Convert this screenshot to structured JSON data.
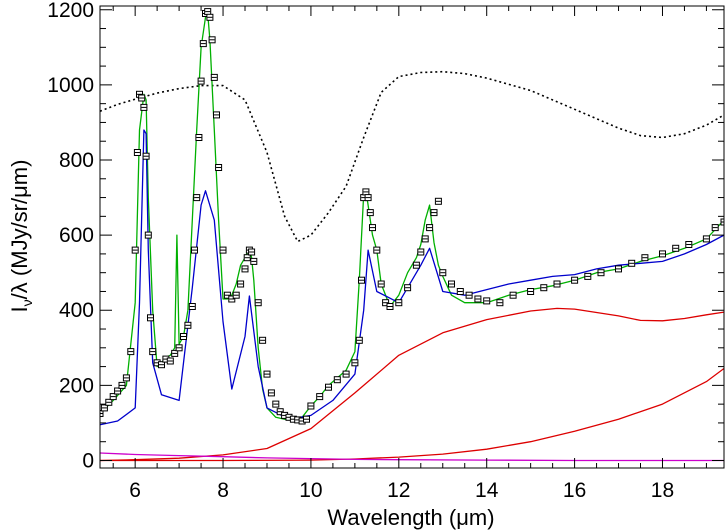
{
  "chart_data": {
    "type": "line",
    "title": "",
    "xlabel": "Wavelength (μm)",
    "ylabel": "I_ν/λ (MJy/sr/μm)",
    "ylabel_parts": {
      "main": "I",
      "sub": "ν",
      "rest": "/λ (MJy/sr/μm)"
    },
    "xlim": [
      5.2,
      19.4
    ],
    "ylim": [
      -20,
      1210
    ],
    "x_ticks": [
      6,
      8,
      10,
      12,
      14,
      16,
      18
    ],
    "x_tick_labels": [
      "6",
      "8",
      "10",
      "12",
      "14",
      "16",
      "18"
    ],
    "y_ticks": [
      0,
      200,
      400,
      600,
      800,
      1000,
      1200
    ],
    "y_tick_labels": [
      "0",
      "200",
      "400",
      "600",
      "800",
      "1000",
      "1200"
    ],
    "grid": false,
    "legend": "none",
    "colors": {
      "data": "#000000",
      "fit": "#00b000",
      "features": "#0000cc",
      "lines": "#cc00cc",
      "dust": "#dd0000",
      "continuum": "#555566",
      "extinction": "#000000"
    },
    "series": [
      {
        "style": "dotted",
        "color": "#000000",
        "x": [
          5.2,
          5.6,
          6.0,
          6.5,
          7.0,
          7.5,
          8.0,
          8.5,
          9.0,
          9.4,
          9.7,
          10.0,
          10.4,
          10.8,
          11.2,
          11.6,
          12.0,
          12.5,
          13.0,
          13.5,
          14.0,
          15.0,
          16.0,
          17.0,
          17.5,
          18.0,
          18.5,
          19.0,
          19.4
        ],
        "y": [
          930,
          948,
          962,
          978,
          990,
          998,
          998,
          960,
          820,
          650,
          583,
          600,
          660,
          730,
          860,
          980,
          1022,
          1033,
          1035,
          1030,
          1018,
          985,
          935,
          885,
          865,
          860,
          870,
          893,
          920
        ]
      },
      {
        "style": "solid",
        "color": "#dd0000",
        "x": [
          5.2,
          6,
          7,
          8,
          9,
          10,
          11,
          12,
          13,
          14,
          15,
          15.6,
          16,
          17,
          17.5,
          18,
          18.5,
          19,
          19.4
        ],
        "y": [
          0,
          2,
          6,
          15,
          32,
          85,
          180,
          280,
          340,
          375,
          398,
          405,
          403,
          385,
          373,
          372,
          378,
          388,
          395
        ]
      },
      {
        "style": "solid",
        "color": "#dd0000",
        "x": [
          5.2,
          8,
          10,
          11,
          12,
          13,
          14,
          15,
          16,
          17,
          18,
          19,
          19.4
        ],
        "y": [
          0,
          0,
          1,
          4,
          9,
          17,
          30,
          50,
          78,
          110,
          150,
          210,
          245
        ]
      },
      {
        "style": "solid",
        "color": "#cc00cc",
        "x": [
          5.2,
          6,
          7,
          8,
          9,
          10,
          11,
          12,
          14,
          16,
          19.4
        ],
        "y": [
          20,
          16,
          13,
          10,
          7,
          5,
          3,
          2,
          1,
          0,
          0
        ]
      },
      {
        "style": "solid",
        "color": "#00b000",
        "x": [
          5.2,
          5.5,
          5.8,
          6.0,
          6.1,
          6.2,
          6.25,
          6.3,
          6.4,
          6.5,
          6.6,
          6.7,
          6.8,
          6.9,
          6.95,
          7.0,
          7.05,
          7.1,
          7.2,
          7.3,
          7.4,
          7.5,
          7.6,
          7.65,
          7.7,
          7.8,
          7.9,
          8.0,
          8.1,
          8.2,
          8.3,
          8.4,
          8.5,
          8.6,
          8.65,
          8.7,
          8.8,
          8.9,
          9.0,
          9.2,
          9.4,
          9.6,
          9.8,
          10.0,
          10.2,
          10.4,
          10.6,
          10.8,
          11.0,
          11.1,
          11.2,
          11.25,
          11.3,
          11.4,
          11.5,
          11.6,
          11.8,
          12.0,
          12.2,
          12.4,
          12.5,
          12.6,
          12.7,
          12.8,
          12.9,
          13.0,
          13.2,
          13.5,
          14.0,
          14.5,
          15.0,
          15.5,
          16.0,
          16.5,
          17.0,
          17.5,
          18.0,
          18.5,
          19.0,
          19.4
        ],
        "y": [
          125,
          160,
          200,
          420,
          880,
          975,
          960,
          700,
          400,
          250,
          260,
          275,
          280,
          300,
          600,
          310,
          320,
          330,
          400,
          640,
          880,
          1100,
          1180,
          1190,
          1120,
          880,
          640,
          430,
          430,
          440,
          470,
          520,
          540,
          565,
          540,
          480,
          300,
          190,
          140,
          115,
          110,
          108,
          115,
          145,
          170,
          200,
          220,
          240,
          290,
          480,
          710,
          720,
          680,
          600,
          560,
          470,
          410,
          440,
          500,
          540,
          575,
          640,
          680,
          580,
          520,
          490,
          440,
          420,
          420,
          440,
          455,
          465,
          480,
          500,
          510,
          530,
          545,
          565,
          590,
          640
        ]
      },
      {
        "style": "solid",
        "color": "#0000cc",
        "x": [
          5.2,
          5.6,
          6.0,
          6.1,
          6.2,
          6.25,
          6.3,
          6.4,
          6.6,
          7.0,
          7.3,
          7.5,
          7.6,
          7.8,
          8.0,
          8.2,
          8.5,
          8.6,
          8.8,
          9.0,
          9.5,
          10.0,
          10.5,
          11.0,
          11.2,
          11.3,
          11.5,
          12.0,
          12.5,
          12.7,
          13.0,
          13.5,
          14.0,
          14.5,
          15.0,
          15.5,
          16.0,
          16.5,
          17.0,
          17.5,
          18.0,
          18.5,
          19.0,
          19.4
        ],
        "y": [
          95,
          105,
          140,
          420,
          880,
          870,
          560,
          260,
          175,
          160,
          460,
          680,
          718,
          640,
          370,
          190,
          330,
          438,
          250,
          140,
          110,
          120,
          160,
          230,
          400,
          560,
          450,
          420,
          520,
          565,
          450,
          440,
          455,
          470,
          480,
          490,
          495,
          510,
          520,
          525,
          530,
          550,
          575,
          600
        ]
      }
    ],
    "markers": {
      "x": [
        5.2,
        5.3,
        5.4,
        5.5,
        5.6,
        5.7,
        5.8,
        5.9,
        6.0,
        6.05,
        6.1,
        6.15,
        6.2,
        6.25,
        6.3,
        6.35,
        6.4,
        6.5,
        6.6,
        6.7,
        6.8,
        6.9,
        7.0,
        7.1,
        7.2,
        7.3,
        7.35,
        7.4,
        7.45,
        7.5,
        7.55,
        7.6,
        7.65,
        7.7,
        7.75,
        7.8,
        7.85,
        7.9,
        8.0,
        8.1,
        8.2,
        8.3,
        8.4,
        8.5,
        8.55,
        8.6,
        8.65,
        8.7,
        8.8,
        8.9,
        9.0,
        9.1,
        9.2,
        9.3,
        9.4,
        9.5,
        9.6,
        9.7,
        9.8,
        9.9,
        10.0,
        10.2,
        10.4,
        10.6,
        10.8,
        11.0,
        11.1,
        11.15,
        11.2,
        11.25,
        11.3,
        11.35,
        11.4,
        11.5,
        11.6,
        11.7,
        11.8,
        12.0,
        12.2,
        12.4,
        12.5,
        12.6,
        12.7,
        12.8,
        12.9,
        13.0,
        13.2,
        13.4,
        13.6,
        13.8,
        14.0,
        14.3,
        14.6,
        15.0,
        15.3,
        15.6,
        16.0,
        16.3,
        16.6,
        17.0,
        17.3,
        17.6,
        18.0,
        18.3,
        18.6,
        19.0,
        19.2,
        19.4
      ],
      "y": [
        125,
        140,
        155,
        170,
        185,
        200,
        220,
        290,
        560,
        820,
        975,
        965,
        940,
        810,
        600,
        380,
        290,
        260,
        255,
        270,
        265,
        285,
        300,
        330,
        360,
        410,
        560,
        700,
        860,
        1010,
        1110,
        1190,
        1195,
        1180,
        1120,
        1020,
        920,
        780,
        560,
        440,
        430,
        440,
        470,
        510,
        540,
        560,
        555,
        530,
        420,
        320,
        230,
        180,
        150,
        130,
        120,
        115,
        110,
        108,
        105,
        110,
        145,
        170,
        195,
        215,
        230,
        260,
        320,
        480,
        700,
        715,
        700,
        660,
        620,
        560,
        470,
        420,
        410,
        420,
        460,
        520,
        555,
        590,
        620,
        660,
        690,
        500,
        470,
        450,
        440,
        430,
        425,
        420,
        440,
        450,
        460,
        470,
        480,
        490,
        500,
        510,
        525,
        540,
        550,
        565,
        575,
        590,
        620,
        635
      ]
    }
  }
}
